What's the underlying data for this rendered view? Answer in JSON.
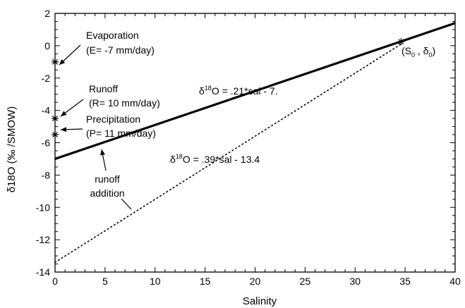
{
  "chart_data": {
    "type": "line",
    "xlabel": "Salinity",
    "ylabel": "δ18O (‰ /SMOW)",
    "xlim": [
      0,
      40
    ],
    "ylim": [
      -14,
      2
    ],
    "x_ticks": [
      "0",
      "5",
      "10",
      "15",
      "20",
      "25",
      "30",
      "35",
      "40"
    ],
    "y_ticks": [
      "2",
      "0",
      "-2",
      "-4",
      "-6",
      "-8",
      "-10",
      "-12",
      "-14"
    ],
    "grid": false,
    "series": [
      {
        "style": "solid",
        "x": [
          0,
          40
        ],
        "y": [
          -7.0,
          1.4
        ]
      },
      {
        "style": "dotted",
        "x": [
          0,
          34.6
        ],
        "y": [
          -13.4,
          0.1
        ]
      }
    ],
    "points": [
      {
        "x": 0,
        "y": -1.0
      },
      {
        "x": 0,
        "y": -4.5
      },
      {
        "x": 0,
        "y": -5.5
      },
      {
        "x": 34.6,
        "y": 0.25
      }
    ],
    "annotations": {
      "evaporation": {
        "line1": "Evaporation",
        "line2": "(E= -7 mm/day)"
      },
      "runoff": {
        "line1": "Runoff",
        "line2": "(R= 10 mm/day)"
      },
      "precipitation": {
        "line1": "Precipitation",
        "line2": "(P= 11 mm/day)"
      },
      "runoff_addition": {
        "line1": "runoff",
        "line2": "addition"
      },
      "equation_solid": {
        "prefix": "δ",
        "sup": "18",
        "rest": "O = .21*sal - 7."
      },
      "equation_dotted": {
        "prefix": "δ",
        "sup": "18",
        "rest": "O = .39*sal - 13.4"
      },
      "endpoint": {
        "open": "(S",
        "sub1": "0",
        "mid": " , δ",
        "sub2": "0",
        "close": ")"
      }
    }
  }
}
